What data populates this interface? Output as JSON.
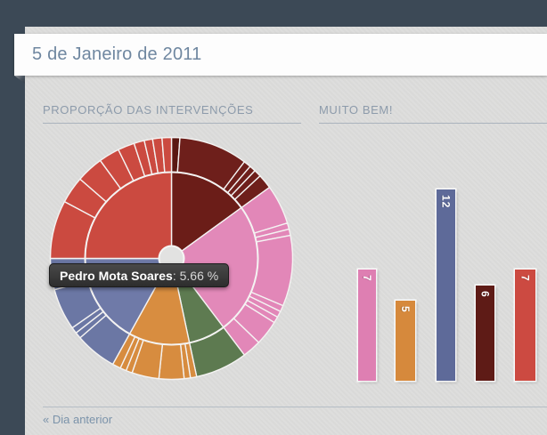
{
  "page": {
    "title": "5 de Janeiro de 2011"
  },
  "sections": [
    {
      "title": "PROPORÇÃO DAS INTERVENÇÕES"
    },
    {
      "title": "MUITO BEM!"
    }
  ],
  "tooltip": {
    "name": "Pedro Mota Soares",
    "rest": " : 5.66 %"
  },
  "footer": {
    "prev_link": "« Dia anterior"
  },
  "colors": {
    "background": "#3c4956",
    "panel": "#dcdcdb",
    "ribbon": "#fdfdfd",
    "title_text": "#6f87a0",
    "section_title_text": "#8d9bab",
    "link_text": "#7b93aa",
    "palette": {
      "red": "#cb4a40",
      "dark_red": "#6e1f1b",
      "pink": "#e287b8",
      "green": "#5d7a50",
      "orange": "#d78c3f",
      "blue": "#6b77a4"
    }
  },
  "chart_data": [
    {
      "type": "pie",
      "variant": "sunburst-two-rings",
      "title": "PROPORÇÃO DAS INTERVENÇÕES",
      "angle_unit": "degrees clockwise from 12 o'clock",
      "highlighted_segment": {
        "label": "Pedro Mota Soares",
        "value_pct": 5.66
      },
      "inner_ring": [
        {
          "start": 0,
          "end": 54,
          "color": "#6b1d18"
        },
        {
          "start": 54,
          "end": 143,
          "color": "#e289b9"
        },
        {
          "start": 143,
          "end": 168,
          "color": "#5e7b51"
        },
        {
          "start": 168,
          "end": 209,
          "color": "#d88d40"
        },
        {
          "start": 209,
          "end": 270,
          "color": "#6f7aa8"
        },
        {
          "start": 270,
          "end": 360,
          "color": "#cb4a40"
        }
      ],
      "outer_ring": [
        {
          "start": 0,
          "end": 4,
          "color": "#5a1711"
        },
        {
          "start": 4,
          "end": 37,
          "color": "#6e1f1b"
        },
        {
          "start": 37,
          "end": 40.5,
          "color": "#6e1f1b"
        },
        {
          "start": 40.5,
          "end": 43.5,
          "color": "#6e1f1b"
        },
        {
          "start": 43.5,
          "end": 47,
          "color": "#6e1f1b"
        },
        {
          "start": 47,
          "end": 54,
          "color": "#6e1f1b"
        },
        {
          "start": 54,
          "end": 73,
          "color": "#e287b8"
        },
        {
          "start": 73,
          "end": 76,
          "color": "#e287b8"
        },
        {
          "start": 76,
          "end": 79,
          "color": "#e287b8"
        },
        {
          "start": 79,
          "end": 113,
          "color": "#e287b8"
        },
        {
          "start": 113,
          "end": 116,
          "color": "#e287b8"
        },
        {
          "start": 116,
          "end": 119,
          "color": "#e287b8"
        },
        {
          "start": 119,
          "end": 122,
          "color": "#e287b8"
        },
        {
          "start": 122,
          "end": 134,
          "color": "#e287b8"
        },
        {
          "start": 134,
          "end": 143,
          "color": "#e287b8"
        },
        {
          "start": 143,
          "end": 168,
          "color": "#5d7a50"
        },
        {
          "start": 168,
          "end": 171,
          "color": "#d78c3f"
        },
        {
          "start": 171,
          "end": 174,
          "color": "#d78c3f"
        },
        {
          "start": 174,
          "end": 186,
          "color": "#d78c3f"
        },
        {
          "start": 186,
          "end": 199,
          "color": "#d78c3f"
        },
        {
          "start": 199,
          "end": 202,
          "color": "#d78c3f"
        },
        {
          "start": 202,
          "end": 205,
          "color": "#d78c3f"
        },
        {
          "start": 205,
          "end": 209,
          "color": "#d78c3f"
        },
        {
          "start": 209,
          "end": 229,
          "color": "#6b77a4"
        },
        {
          "start": 229,
          "end": 232,
          "color": "#6b77a4"
        },
        {
          "start": 232,
          "end": 235,
          "color": "#6b77a4"
        },
        {
          "start": 235,
          "end": 255,
          "color": "#6b77a4"
        },
        {
          "start": 255,
          "end": 270,
          "color": "#6b77a4"
        },
        {
          "start": 270,
          "end": 298,
          "color": "#cb4a40"
        },
        {
          "start": 298,
          "end": 311,
          "color": "#cb4a40"
        },
        {
          "start": 311,
          "end": 324,
          "color": "#cb4a40"
        },
        {
          "start": 324,
          "end": 334,
          "color": "#cb4a40"
        },
        {
          "start": 334,
          "end": 342,
          "color": "#cb4a40"
        },
        {
          "start": 342,
          "end": 347,
          "color": "#cb4a40"
        },
        {
          "start": 347,
          "end": 351,
          "color": "#cb4a40"
        },
        {
          "start": 351,
          "end": 355.5,
          "color": "#cb4a40"
        },
        {
          "start": 355.5,
          "end": 360,
          "color": "#cb4a40"
        }
      ]
    },
    {
      "type": "bar",
      "title": "MUITO BEM!",
      "values": [
        7,
        5,
        12,
        6,
        7
      ],
      "data_labels": [
        "7",
        "5",
        "12",
        "6",
        "7"
      ],
      "colors": [
        "#de7fb2",
        "#d6893c",
        "#5e6a99",
        "#5e1b16",
        "#cc4a41"
      ],
      "ylim": [
        0,
        12
      ],
      "grid": false,
      "axes_hidden": true,
      "label_style": "rotated 90° white, inside bar top"
    }
  ]
}
